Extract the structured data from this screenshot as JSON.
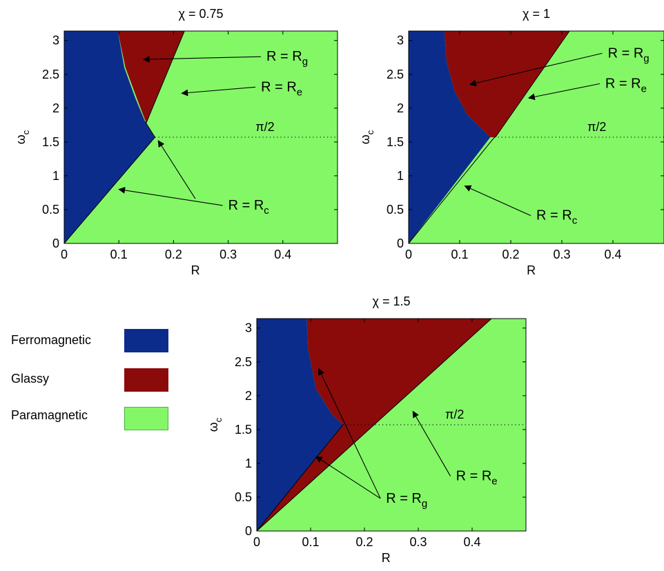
{
  "legend": {
    "items": [
      {
        "label": "Ferromagnetic",
        "color": "#0c2c8c"
      },
      {
        "label": "Glassy",
        "color": "#8b0b0b"
      },
      {
        "label": "Paramagnetic",
        "color": "#84f767"
      }
    ]
  },
  "chart_data": [
    {
      "type": "heatmap",
      "title_chi": "0.75",
      "xlabel": "R",
      "ylabel_symbol": "ω",
      "ylabel_sub": "c",
      "xlim": [
        0,
        0.5
      ],
      "ylim": [
        0,
        3.14
      ],
      "xticks": [
        "0",
        "0.1",
        "0.2",
        "0.3",
        "0.4"
      ],
      "yticks": [
        "0",
        "0.5",
        "1",
        "1.5",
        "2",
        "2.5",
        "3"
      ],
      "pi_half_label": "π/2",
      "regions": {
        "ferromagnetic": [
          [
            0,
            0
          ],
          [
            0,
            3.14
          ],
          [
            0.098,
            3.14
          ],
          [
            0.11,
            2.6
          ],
          [
            0.13,
            2.15
          ],
          [
            0.148,
            1.8
          ],
          [
            0.166,
            1.57
          ]
        ],
        "glassy": [
          [
            0.098,
            3.14
          ],
          [
            0.22,
            3.14
          ],
          [
            0.15,
            1.78
          ],
          [
            0.135,
            2.1
          ],
          [
            0.112,
            2.6
          ]
        ]
      },
      "boundary_lines": [
        {
          "name": "R_c",
          "points": [
            [
              0,
              0
            ],
            [
              0.166,
              1.57
            ]
          ]
        },
        {
          "name": "R_e",
          "points": [
            [
              0.148,
              1.8
            ],
            [
              0.166,
              1.57
            ]
          ]
        },
        {
          "name": "R_g",
          "points": [
            [
              0.15,
              1.78
            ],
            [
              0.22,
              3.14
            ]
          ]
        }
      ],
      "annotations": [
        {
          "main": "R = R",
          "sub": "g",
          "text_at": [
            0.37,
            2.7
          ],
          "arrow_to": [
            0.145,
            2.72
          ]
        },
        {
          "main": "R = R",
          "sub": "e",
          "text_at": [
            0.36,
            2.25
          ],
          "arrow_to": [
            0.215,
            2.22
          ]
        },
        {
          "main": "R = R",
          "sub": "c",
          "text_at": [
            0.3,
            0.5
          ],
          "arrow_to": [
            0.1,
            0.8
          ]
        },
        {
          "main": "",
          "sub": "",
          "text_at": [
            0.25,
            0.6
          ],
          "arrow_to": [
            0.172,
            1.52
          ]
        }
      ]
    },
    {
      "type": "heatmap",
      "title_chi": "1",
      "xlabel": "R",
      "ylabel_symbol": "ω",
      "ylabel_sub": "c",
      "xlim": [
        0,
        0.5
      ],
      "ylim": [
        0,
        3.14
      ],
      "xticks": [
        "0",
        "0.1",
        "0.2",
        "0.3",
        "0.4"
      ],
      "yticks": [
        "0",
        "0.5",
        "1",
        "1.5",
        "2",
        "2.5",
        "3"
      ],
      "pi_half_label": "π/2",
      "regions": {
        "ferromagnetic": [
          [
            0,
            0
          ],
          [
            0,
            3.14
          ],
          [
            0.07,
            3.14
          ],
          [
            0.074,
            2.7
          ],
          [
            0.09,
            2.25
          ],
          [
            0.115,
            1.9
          ],
          [
            0.16,
            1.57
          ]
        ],
        "glassy": [
          [
            0.07,
            3.14
          ],
          [
            0.315,
            3.14
          ],
          [
            0.17,
            1.57
          ],
          [
            0.16,
            1.57
          ],
          [
            0.115,
            1.9
          ],
          [
            0.09,
            2.25
          ],
          [
            0.074,
            2.7
          ]
        ]
      },
      "boundary_lines": [
        {
          "name": "R_c",
          "points": [
            [
              0,
              0
            ],
            [
              0.168,
              1.57
            ]
          ]
        },
        {
          "name": "R_e",
          "points": [
            [
              0.17,
              1.57
            ],
            [
              0.315,
              3.14
            ]
          ]
        }
      ],
      "annotations": [
        {
          "main": "R = R",
          "sub": "g",
          "text_at": [
            0.39,
            2.75
          ],
          "arrow_to": [
            0.12,
            2.35
          ]
        },
        {
          "main": "R = R",
          "sub": "e",
          "text_at": [
            0.385,
            2.3
          ],
          "arrow_to": [
            0.235,
            2.15
          ]
        },
        {
          "main": "R = R",
          "sub": "c",
          "text_at": [
            0.25,
            0.35
          ],
          "arrow_to": [
            0.11,
            0.85
          ]
        }
      ]
    },
    {
      "type": "heatmap",
      "title_chi": "1.5",
      "xlabel": "R",
      "ylabel_symbol": "ω",
      "ylabel_sub": "c",
      "xlim": [
        0,
        0.5
      ],
      "ylim": [
        0,
        3.14
      ],
      "xticks": [
        "0",
        "0.1",
        "0.2",
        "0.3",
        "0.4"
      ],
      "yticks": [
        "0",
        "0.5",
        "1",
        "1.5",
        "2",
        "2.5",
        "3"
      ],
      "pi_half_label": "π/2",
      "regions": {
        "ferromagnetic": [
          [
            0,
            0
          ],
          [
            0,
            3.14
          ],
          [
            0.093,
            3.14
          ],
          [
            0.095,
            2.7
          ],
          [
            0.11,
            2.1
          ],
          [
            0.14,
            1.72
          ],
          [
            0.16,
            1.57
          ]
        ],
        "glassy": [
          [
            0.093,
            3.14
          ],
          [
            0.436,
            3.14
          ],
          [
            0,
            0
          ],
          [
            0.16,
            1.57
          ],
          [
            0.14,
            1.72
          ],
          [
            0.11,
            2.1
          ],
          [
            0.095,
            2.7
          ]
        ]
      },
      "boundary_lines": [
        {
          "name": "R_g",
          "points": [
            [
              0,
              0
            ],
            [
              0.16,
              1.57
            ]
          ]
        },
        {
          "name": "R_e",
          "points": [
            [
              0,
              0
            ],
            [
              0.436,
              3.14
            ]
          ]
        }
      ],
      "annotations": [
        {
          "main": "R = R",
          "sub": "g",
          "text_at": [
            0.24,
            0.42
          ],
          "arrow_to": [
            0.11,
            1.1
          ]
        },
        {
          "main": "",
          "sub": "",
          "text_at": [
            0.24,
            0.42
          ],
          "arrow_to": [
            0.115,
            2.4
          ]
        },
        {
          "main": "R = R",
          "sub": "e",
          "text_at": [
            0.37,
            0.75
          ],
          "arrow_to": [
            0.29,
            1.77
          ]
        }
      ]
    }
  ]
}
